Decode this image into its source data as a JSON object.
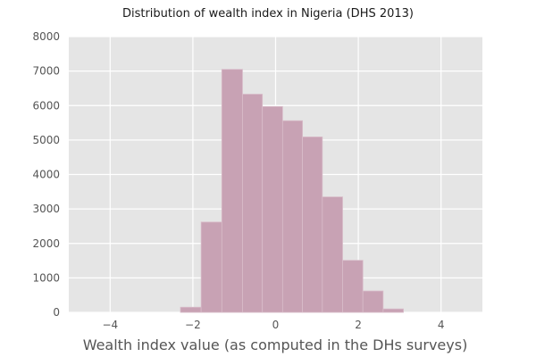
{
  "chart_data": {
    "type": "bar",
    "title": "Distribution of wealth index in Nigeria (DHS 2013)",
    "xlabel": "Wealth index value (as computed in the DHs surveys)",
    "ylabel": "",
    "xlim": [
      -5,
      5
    ],
    "ylim": [
      0,
      8000
    ],
    "xticks": [
      -4,
      -2,
      0,
      2,
      4
    ],
    "yticks": [
      0,
      1000,
      2000,
      3000,
      4000,
      5000,
      6000,
      7000,
      8000
    ],
    "grid": true,
    "legend": "none",
    "bins": [
      {
        "x0": -2.3,
        "x1": -1.8,
        "count": 150
      },
      {
        "x0": -1.8,
        "x1": -1.3,
        "count": 2620
      },
      {
        "x0": -1.3,
        "x1": -0.8,
        "count": 7050
      },
      {
        "x0": -0.8,
        "x1": -0.32,
        "count": 6330
      },
      {
        "x0": -0.32,
        "x1": 0.17,
        "count": 5970
      },
      {
        "x0": 0.17,
        "x1": 0.65,
        "count": 5560
      },
      {
        "x0": 0.65,
        "x1": 1.13,
        "count": 5090
      },
      {
        "x0": 1.13,
        "x1": 1.62,
        "count": 3350
      },
      {
        "x0": 1.62,
        "x1": 2.11,
        "count": 1510
      },
      {
        "x0": 2.11,
        "x1": 2.6,
        "count": 620
      },
      {
        "x0": 2.6,
        "x1": 3.09,
        "count": 100
      }
    ],
    "colors": {
      "bar_fill": "#c8a2b4",
      "bar_edge": "#d8bcc9",
      "plot_background": "#e5e5e5",
      "grid": "#ffffff"
    }
  }
}
